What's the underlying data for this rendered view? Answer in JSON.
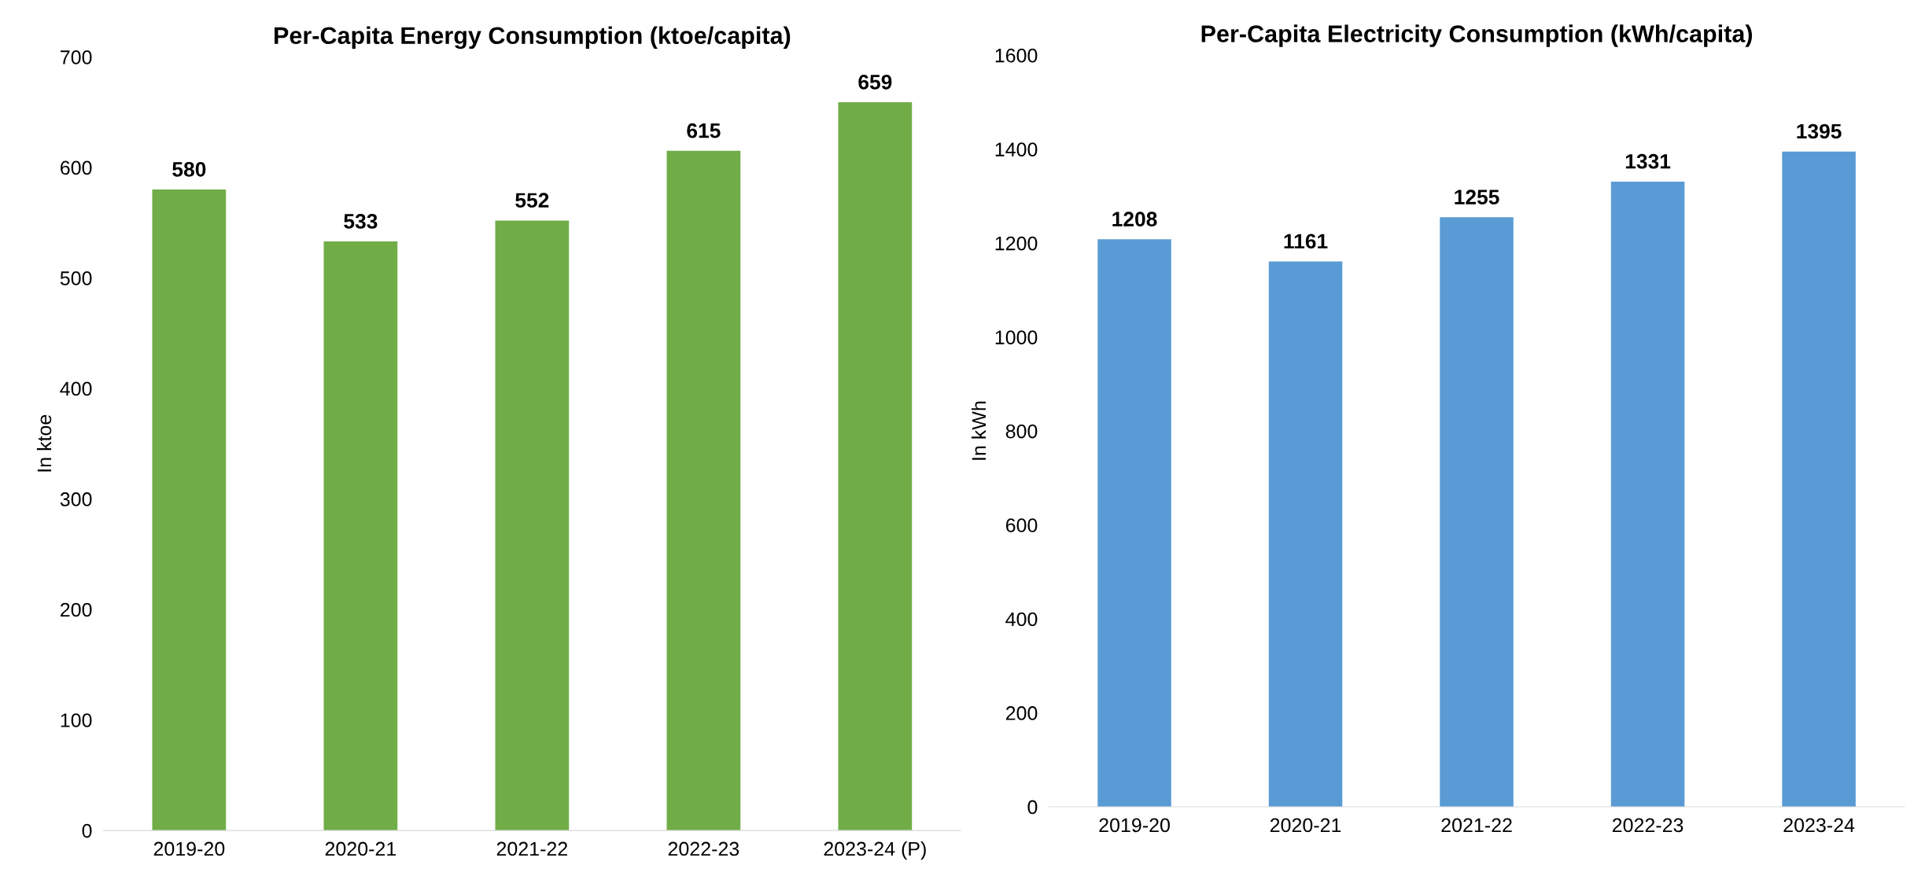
{
  "chart_data": [
    {
      "type": "bar",
      "title": "Per-Capita Energy Consumption (ktoe/capita)",
      "ylabel": "In ktoe",
      "categories": [
        "2019-20",
        "2020-21",
        "2021-22",
        "2022-23",
        "2023-24 (P)"
      ],
      "series": [
        {
          "color": "#70ad47",
          "values": [
            580,
            533,
            552,
            615,
            659
          ]
        }
      ],
      "ylim": [
        0,
        700
      ],
      "yticks": [
        0,
        100,
        200,
        300,
        400,
        500,
        600,
        700
      ],
      "data_labels": true,
      "grid": false,
      "legend": false
    },
    {
      "type": "bar",
      "title": "Per-Capita Electricity Consumption (kWh/capita)",
      "ylabel": "In kWh",
      "categories": [
        "2019-20",
        "2020-21",
        "2021-22",
        "2022-23",
        "2023-24"
      ],
      "series": [
        {
          "color": "#5b9bd5",
          "values": [
            1208,
            1161,
            1255,
            1331,
            1395
          ]
        }
      ],
      "ylim": [
        0,
        1600
      ],
      "yticks": [
        0,
        200,
        400,
        600,
        800,
        1000,
        1200,
        1400,
        1600
      ],
      "data_labels": true,
      "grid": false,
      "legend": false
    }
  ]
}
